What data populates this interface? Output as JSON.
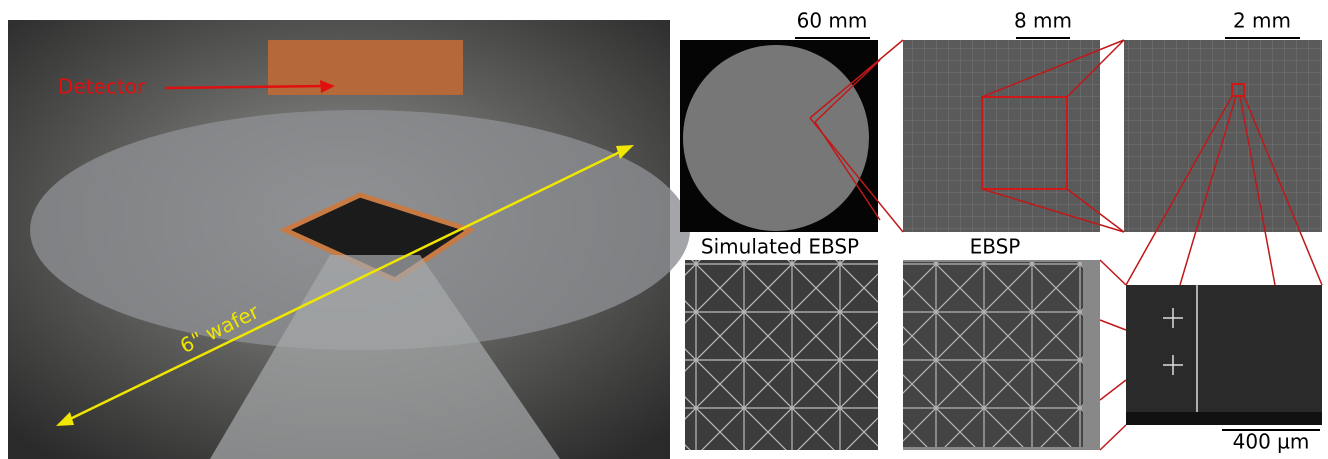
{
  "photo": {
    "detector_label": "Detector",
    "wafer_label": "6\" wafer"
  },
  "maps": {
    "scale_1": "60 mm",
    "scale_2": "8 mm",
    "scale_3": "2 mm",
    "scale_4": "400 µm"
  },
  "patterns": {
    "simulated_title": "Simulated EBSP",
    "measured_title": "EBSP"
  }
}
